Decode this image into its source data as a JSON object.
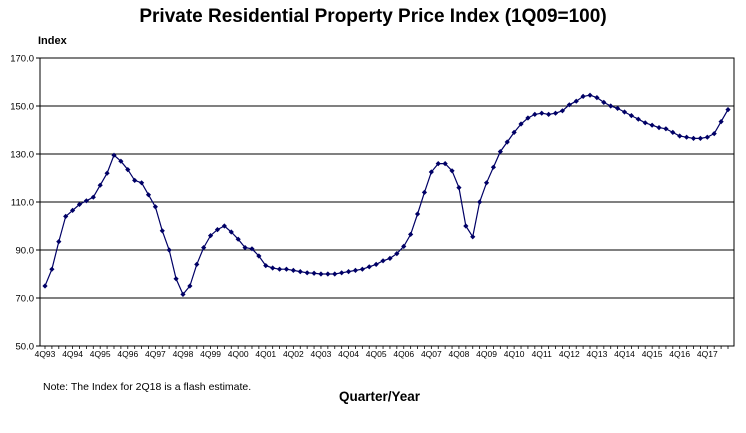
{
  "chart_data": {
    "type": "line",
    "title": "Private Residential Property Price Index (1Q09=100)",
    "ylabel": "Index",
    "xlabel": "Quarter/Year",
    "note": "Note: The Index for 2Q18 is a flash estimate.",
    "ylim": [
      50,
      170
    ],
    "yticks": [
      "50.0",
      "70.0",
      "90.0",
      "110.0",
      "130.0",
      "150.0",
      "170.0"
    ],
    "grid": "horizontal",
    "xticks": [
      "4Q93",
      "4Q94",
      "4Q95",
      "4Q96",
      "4Q97",
      "4Q98",
      "4Q99",
      "4Q00",
      "4Q01",
      "4Q02",
      "4Q03",
      "4Q04",
      "4Q05",
      "4Q06",
      "4Q07",
      "4Q08",
      "4Q09",
      "4Q10",
      "4Q11",
      "4Q12",
      "4Q13",
      "4Q14",
      "4Q15",
      "4Q16",
      "4Q17"
    ],
    "colors": {
      "series": "#000066",
      "grid": "#000000"
    },
    "series": [
      {
        "values": [
          75,
          82,
          93.5,
          104,
          106.5,
          109,
          110.5,
          112,
          117,
          122,
          129.5,
          127,
          123.5,
          119,
          118,
          113,
          108,
          98,
          90,
          78,
          71.5,
          75,
          84,
          91,
          96,
          98.5,
          100,
          97.5,
          94.5,
          91,
          90.5,
          87.5,
          83.5,
          82.5,
          82,
          82,
          81.5,
          81,
          80.5,
          80.3,
          80,
          80,
          80,
          80.5,
          81,
          81.5,
          82,
          83,
          84,
          85.5,
          86.5,
          88.5,
          91.5,
          96.5,
          105,
          114,
          122.5,
          126,
          126,
          123,
          116,
          100,
          95.5,
          110,
          118,
          124.5,
          131,
          135,
          139,
          142.5,
          145,
          146.5,
          147,
          146.5,
          147,
          148,
          150.5,
          152,
          154,
          154.5,
          153.5,
          151.5,
          150,
          149,
          147.5,
          146,
          144.5,
          143,
          142,
          141,
          140.5,
          139,
          137.5,
          137,
          136.5,
          136.5,
          137,
          138.5,
          143.5,
          148.5
        ]
      }
    ]
  }
}
